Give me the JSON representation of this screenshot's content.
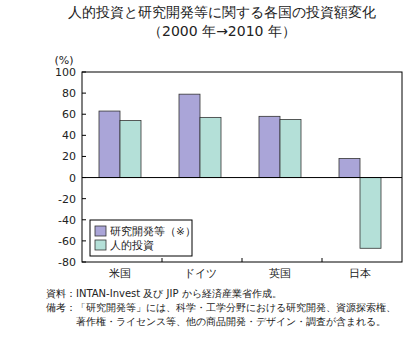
{
  "chart_data": {
    "type": "bar",
    "title": "人的投資と研究開発等に関する各国の投資額変化",
    "subtitle": "（2000 年→2010 年）",
    "y_label": "(%)",
    "categories": [
      "米国",
      "ドイツ",
      "英国",
      "日本"
    ],
    "series": [
      {
        "name": "研究開発等（※）",
        "color": "#aaa5d8",
        "values": [
          63,
          79,
          58,
          18
        ]
      },
      {
        "name": "人的投資",
        "color": "#b4e0d8",
        "values": [
          54,
          57,
          55,
          -67
        ]
      }
    ],
    "ylim": [
      -80,
      100
    ],
    "yticks": [
      -80,
      -60,
      -40,
      -20,
      0,
      20,
      40,
      60,
      80,
      100
    ],
    "legend": "lower left",
    "grid": false,
    "notes": [
      "資料：INTAN-Invest 及び JIP から経済産業省作成。",
      "備考：「研究開発等」には、科学・工学分野における研究開発、資源探索権、",
      "　　　著作権・ライセンス等、他の商品開発・デザイン・調査が含まれる。"
    ]
  }
}
